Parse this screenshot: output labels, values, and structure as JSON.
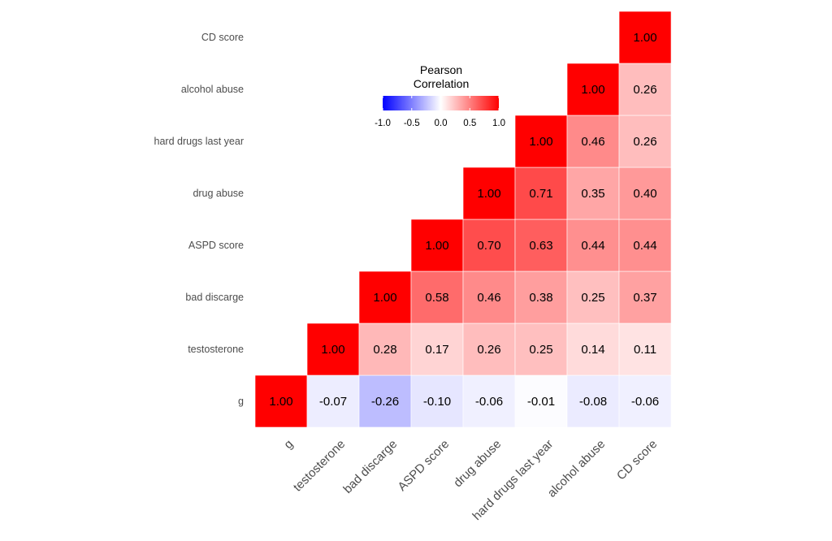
{
  "chart_data": {
    "type": "heatmap",
    "variables": [
      "g",
      "testosterone",
      "bad discarge",
      "ASPD score",
      "drug abuse",
      "hard drugs last year",
      "alcohol abuse",
      "CD score"
    ],
    "matrix_upper": [
      [
        1.0,
        -0.07,
        -0.26,
        -0.1,
        -0.06,
        -0.01,
        -0.08,
        -0.06
      ],
      [
        null,
        1.0,
        0.28,
        0.17,
        0.26,
        0.25,
        0.14,
        0.11
      ],
      [
        null,
        null,
        1.0,
        0.58,
        0.46,
        0.38,
        0.25,
        0.37
      ],
      [
        null,
        null,
        null,
        1.0,
        0.7,
        0.63,
        0.44,
        0.44
      ],
      [
        null,
        null,
        null,
        null,
        1.0,
        0.71,
        0.35,
        0.4
      ],
      [
        null,
        null,
        null,
        null,
        null,
        1.0,
        0.46,
        0.26
      ],
      [
        null,
        null,
        null,
        null,
        null,
        null,
        1.0,
        0.26
      ],
      [
        null,
        null,
        null,
        null,
        null,
        null,
        null,
        1.0
      ]
    ],
    "legend": {
      "title_lines": [
        "Pearson",
        "Correlation"
      ],
      "ticks": [
        "-1.0",
        "-0.5",
        "0.0",
        "0.5",
        "1.0"
      ],
      "range": [
        -1,
        1
      ],
      "low_color": "#0000ff",
      "mid_color": "#ffffff",
      "high_color": "#ff0000"
    }
  }
}
